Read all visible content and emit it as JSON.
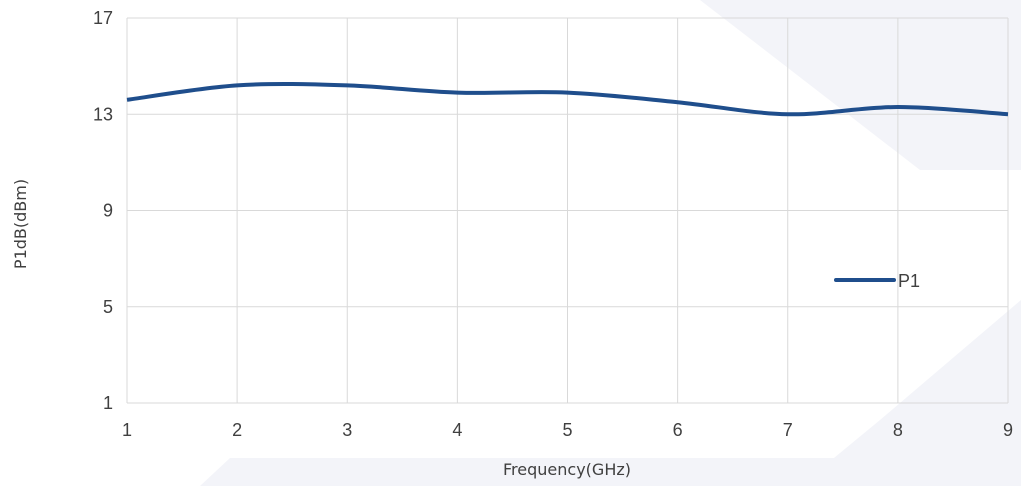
{
  "chart_data": {
    "type": "line",
    "title": "",
    "xlabel": "Frequency(GHz)",
    "ylabel": "P1dB(dBm)",
    "xlim": [
      1,
      9
    ],
    "ylim": [
      1,
      17
    ],
    "xticks": [
      1,
      2,
      3,
      4,
      5,
      6,
      7,
      8,
      9
    ],
    "yticks": [
      1,
      5,
      9,
      13,
      17
    ],
    "grid": true,
    "legend_position": "right",
    "series": [
      {
        "name": "P1",
        "color": "#1f4e8c",
        "x": [
          1,
          2,
          3,
          4,
          5,
          6,
          7,
          8,
          9
        ],
        "y": [
          13.6,
          14.2,
          14.2,
          13.9,
          13.9,
          13.5,
          13.0,
          13.3,
          13.0
        ]
      }
    ]
  }
}
